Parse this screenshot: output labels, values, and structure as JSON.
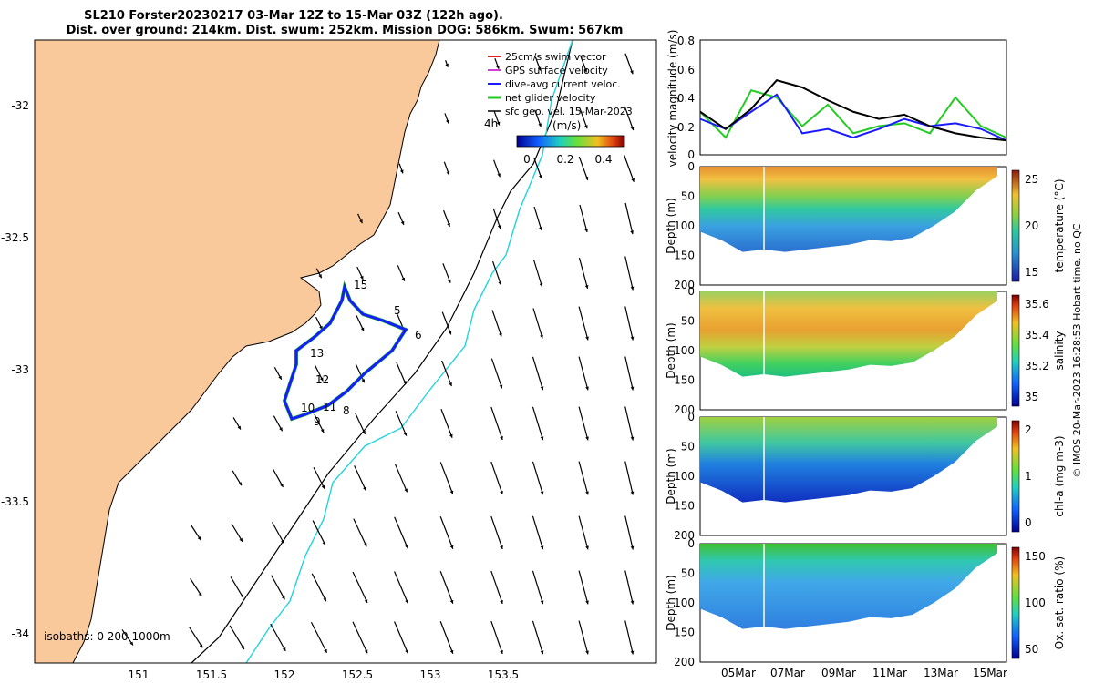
{
  "colors": {
    "land": "#f9c89b",
    "sea": "#ffffff",
    "path": "#1a1aff",
    "track_net": "#22cc22",
    "sfc_geo": "#000000",
    "isobath_black": "#000000",
    "isobath_cyan": "#22d3e0"
  },
  "header": {
    "line1": "SL210 Forster20230217 03-Mar 12Z to 15-Mar 03Z (122h ago).",
    "line2": "Dist. over ground: 214km. Dist. swum: 252km. Mission DOG: 586km. Swum: 567km"
  },
  "map": {
    "lon_ticks": [
      "151",
      "151.5",
      "152",
      "152.5",
      "153",
      "153.5"
    ],
    "lat_ticks": [
      "-32",
      "-32.5",
      "-33",
      "-33.5",
      "-34"
    ],
    "isobath_label": "isobaths: 0 200 1000m",
    "legend": [
      "25cm/s swim vector",
      "GPS surface velocity",
      "dive-avg current veloc.",
      "net glider velocity",
      "sfc geo. vel. 15-Mar-2023"
    ],
    "colorbar": {
      "title": "(m/s)",
      "label": "4h",
      "ticks": [
        "0",
        "0.2",
        "0.4"
      ]
    },
    "day_labels": [
      "15",
      "5",
      "6",
      "13",
      "12",
      "10",
      "11",
      "8",
      "9"
    ]
  },
  "timeseries": {
    "ylabel": "velocity magnitude (m/s)",
    "yticks": [
      "0.8",
      "0.6",
      "0.4",
      "0.2",
      "0"
    ]
  },
  "sections": [
    {
      "name": "temperature",
      "cb_label": "temperature (°C)",
      "cb_ticks": [
        "25",
        "20",
        "15"
      ],
      "depth_ticks": [
        "0",
        "50",
        "100",
        "150",
        "200"
      ]
    },
    {
      "name": "salinity",
      "cb_label": "salinity",
      "cb_ticks": [
        "35.6",
        "35.4",
        "35.2",
        "35"
      ],
      "depth_ticks": [
        "0",
        "50",
        "100",
        "150",
        "200"
      ]
    },
    {
      "name": "chla",
      "cb_label": "chl-a (mg m-3)",
      "cb_ticks": [
        "2",
        "1",
        "0"
      ],
      "depth_ticks": [
        "0",
        "50",
        "100",
        "150",
        "200"
      ]
    },
    {
      "name": "oxsat",
      "cb_label": "Ox. sat. ratio (%)",
      "cb_ticks": [
        "150",
        "100",
        "50"
      ],
      "depth_ticks": [
        "0",
        "50",
        "100",
        "150",
        "200"
      ]
    }
  ],
  "depth_axis_label": "Depth (m)",
  "x_dates": [
    "05Mar",
    "07Mar",
    "09Mar",
    "11Mar",
    "13Mar",
    "15Mar"
  ],
  "footer": "© IMOS 20-Mar-2023 16:28:53 Hobart time. no QC",
  "chart_data": [
    {
      "type": "line",
      "title": "",
      "ylabel": "velocity magnitude (m/s)",
      "ylim": [
        0,
        0.8
      ],
      "x": [
        "03-Mar",
        "04-Mar",
        "05-Mar",
        "06-Mar",
        "07-Mar",
        "08-Mar",
        "09-Mar",
        "10-Mar",
        "11-Mar",
        "12-Mar",
        "13-Mar",
        "14-Mar",
        "15-Mar"
      ],
      "series": [
        {
          "name": "net glider velocity",
          "values": [
            0.3,
            0.12,
            0.45,
            0.4,
            0.2,
            0.35,
            0.15,
            0.2,
            0.22,
            0.15,
            0.4,
            0.2,
            0.12
          ]
        },
        {
          "name": "dive-avg current veloc.",
          "values": [
            0.25,
            0.18,
            0.3,
            0.42,
            0.15,
            0.18,
            0.12,
            0.18,
            0.25,
            0.2,
            0.22,
            0.18,
            0.1
          ]
        },
        {
          "name": "sfc geo. vel.",
          "values": [
            0.3,
            0.18,
            0.32,
            0.52,
            0.47,
            0.38,
            0.3,
            0.25,
            0.28,
            0.2,
            0.15,
            0.12,
            0.1
          ]
        }
      ]
    },
    {
      "type": "heatmap",
      "ylabel": "Depth (m)",
      "zlabel": "temperature (°C)",
      "zlim": [
        11,
        28
      ],
      "ylim": [
        200,
        0
      ]
    },
    {
      "type": "heatmap",
      "ylabel": "Depth (m)",
      "zlabel": "salinity",
      "zlim": [
        34.9,
        35.8
      ],
      "ylim": [
        200,
        0
      ]
    },
    {
      "type": "heatmap",
      "ylabel": "Depth (m)",
      "zlabel": "chl-a (mg m-3)",
      "zlim": [
        0,
        2
      ],
      "ylim": [
        200,
        0
      ]
    },
    {
      "type": "heatmap",
      "ylabel": "Depth (m)",
      "zlabel": "Ox. sat. ratio (%)",
      "zlim": [
        20,
        175
      ],
      "ylim": [
        200,
        0
      ]
    }
  ]
}
